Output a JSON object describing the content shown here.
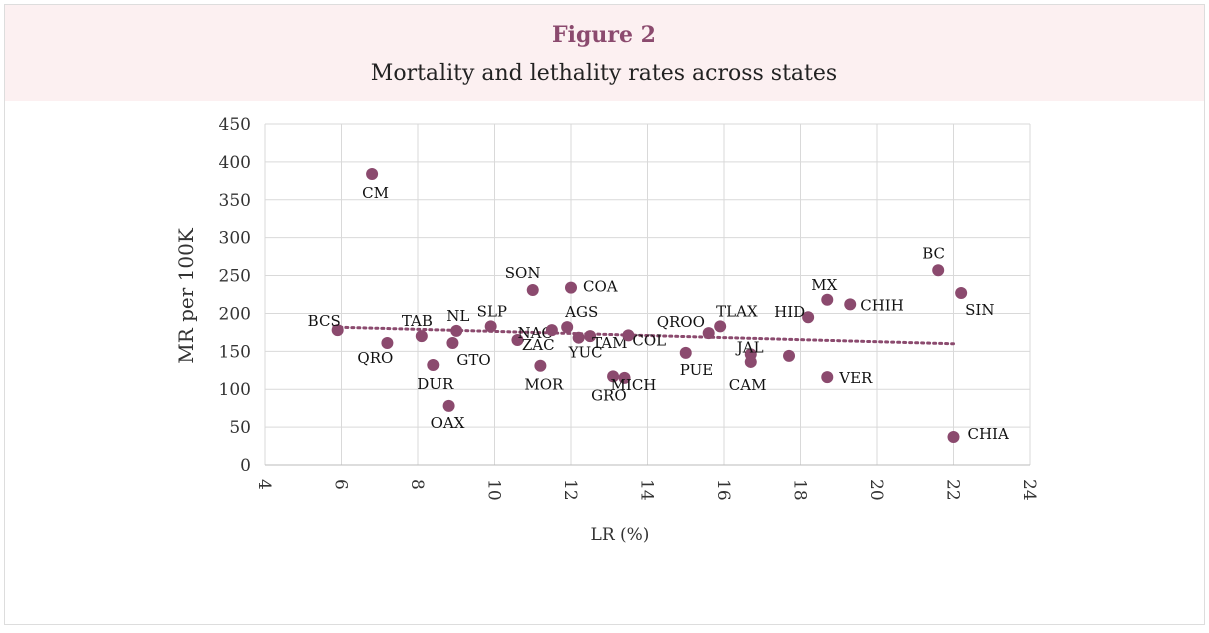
{
  "chart_data": {
    "type": "scatter",
    "title": "Figure 2",
    "subtitle": "Mortality and lethality rates across states",
    "x_label": "LR (%)",
    "y_label": "MR per 100K",
    "xlim": [
      4,
      24
    ],
    "xticks": [
      4,
      6,
      8,
      10,
      12,
      14,
      16,
      18,
      20,
      22,
      24
    ],
    "ylim": [
      0,
      450
    ],
    "yticks": [
      0,
      50,
      100,
      150,
      200,
      250,
      300,
      350,
      400,
      450
    ],
    "grid": true,
    "color": "#8b4a6e",
    "labels": [
      "CM",
      "BCS",
      "QRO",
      "TAB",
      "DUR",
      "GTO",
      "NL",
      "OAX",
      "SLP",
      "NAC",
      "SON",
      "MOR",
      "AGS",
      "COA",
      "ZAC",
      "YUC",
      "TAM",
      "COL",
      "GRO",
      "MICH",
      "PUE",
      "QROO",
      "TLAX",
      "JAL",
      "CAM",
      null,
      "HID",
      "MX",
      "CHIH",
      "VER",
      "BC",
      "SIN",
      "CHIA"
    ],
    "x": [
      6.8,
      5.9,
      7.2,
      8.1,
      8.4,
      8.9,
      9.0,
      8.8,
      9.9,
      10.6,
      11.0,
      11.2,
      11.9,
      12.0,
      11.5,
      12.2,
      12.5,
      13.5,
      13.1,
      13.4,
      15.0,
      15.6,
      15.9,
      16.7,
      16.7,
      17.7,
      18.2,
      18.7,
      19.3,
      18.7,
      21.6,
      22.2,
      22.0
    ],
    "values": [
      384,
      178,
      161,
      170,
      132,
      161,
      177,
      78,
      183,
      165,
      231,
      131,
      182,
      234,
      178,
      168,
      170,
      171,
      117,
      115,
      148,
      174,
      183,
      146,
      136,
      144,
      195,
      218,
      212,
      116,
      257,
      227,
      37
    ],
    "trendline": {
      "x": [
        5.8,
        22
      ],
      "values": [
        182,
        160
      ],
      "color": "#8b4a6e"
    }
  }
}
